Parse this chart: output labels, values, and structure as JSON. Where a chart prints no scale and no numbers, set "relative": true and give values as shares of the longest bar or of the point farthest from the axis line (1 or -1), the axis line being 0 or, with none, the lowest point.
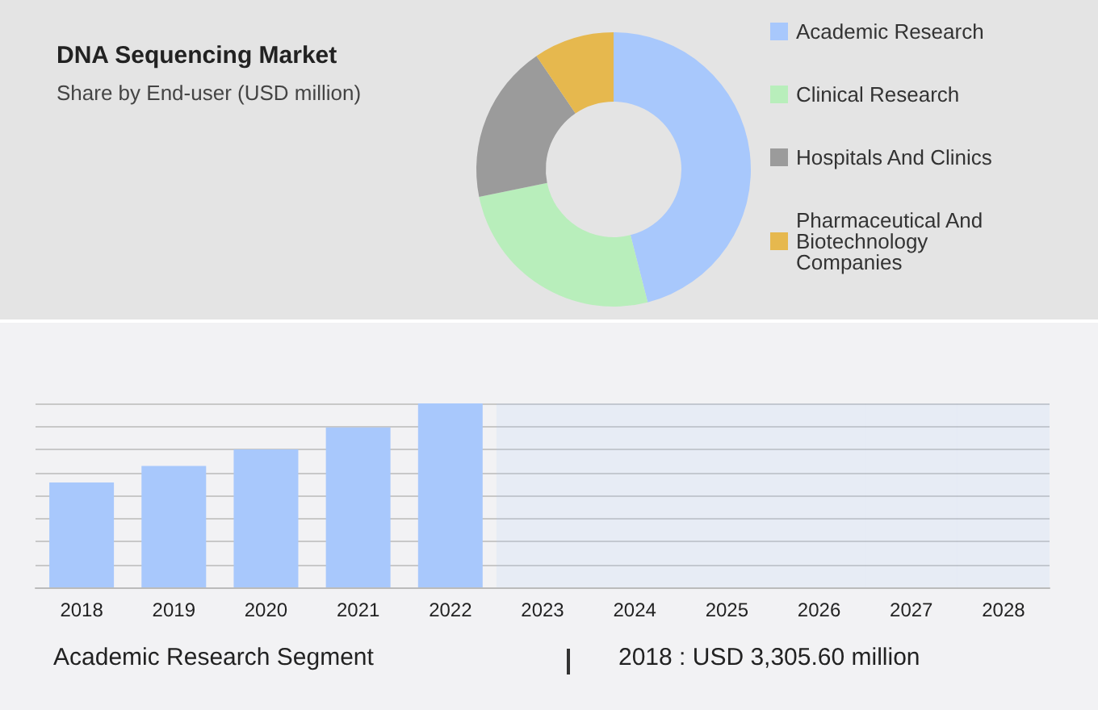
{
  "chart_data": [
    {
      "type": "donut",
      "title": "DNA Sequencing Market",
      "subtitle": "Share by End-user (USD million)",
      "categories": [
        "Academic Research",
        "Clinical Research",
        "Hospitals And Clinics",
        "Pharmaceutical And Biotechnology Companies"
      ],
      "values": [
        46,
        25.8,
        18.7,
        9.5
      ],
      "colors": [
        "#a8c8fc",
        "#b8eebb",
        "#9b9b9b",
        "#e6b84e"
      ],
      "legend": "right"
    },
    {
      "type": "bar",
      "relative": true,
      "grid": "y",
      "categories": [
        "2018",
        "2019",
        "2020",
        "2021",
        "2022",
        "2023",
        "2024",
        "2025",
        "2026",
        "2027",
        "2028"
      ],
      "values": [
        0.57,
        0.66,
        0.75,
        0.87,
        1,
        null,
        null,
        null,
        null,
        null,
        null
      ],
      "color": "#a8c8fc",
      "bands": [
        {
          "axis": "x",
          "from": "2023",
          "to": "2023",
          "color": "#a8c8fc"
        },
        {
          "axis": "x",
          "from": "2024",
          "to": "2024",
          "color": "#a8c8fc"
        },
        {
          "axis": "x",
          "from": "2025",
          "to": "2025",
          "color": "#a8c8fc"
        },
        {
          "axis": "x",
          "from": "2026",
          "to": "2026",
          "color": "#a8c8fc"
        },
        {
          "axis": "x",
          "from": "2027",
          "to": "2027",
          "color": "#a8c8fc"
        },
        {
          "axis": "x",
          "from": "2028",
          "to": "2028",
          "color": "#a8c8fc"
        }
      ],
      "annotations": [
        "Academic Research Segment",
        "2018 : USD 3,305.60 million"
      ]
    }
  ]
}
